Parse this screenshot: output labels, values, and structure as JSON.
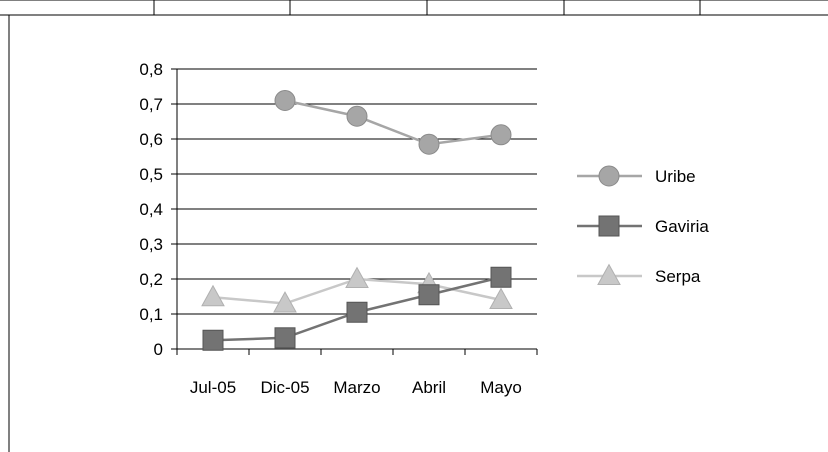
{
  "chart_data": {
    "type": "line",
    "categories": [
      "Jul-05",
      "Dic-05",
      "Marzo",
      "Abril",
      "Mayo"
    ],
    "ylim": [
      0,
      0.8
    ],
    "yticks": [
      "0",
      "0,1",
      "0,2",
      "0,3",
      "0,4",
      "0,5",
      "0,6",
      "0,7",
      "0,8"
    ],
    "grid": true,
    "legend_position": "right",
    "title": "",
    "xlabel": "",
    "ylabel": "",
    "series": [
      {
        "name": "Uribe",
        "values": [
          null,
          0.71,
          0.665,
          0.585,
          0.612
        ],
        "color": "#a6a6a6",
        "marker": "circle"
      },
      {
        "name": "Gaviria",
        "values": [
          0.025,
          0.032,
          0.105,
          0.155,
          0.205
        ],
        "color": "#737373",
        "marker": "square"
      },
      {
        "name": "Serpa",
        "values": [
          0.148,
          0.13,
          0.2,
          0.185,
          0.14
        ],
        "color": "#c8c8c8",
        "marker": "triangle"
      }
    ]
  }
}
